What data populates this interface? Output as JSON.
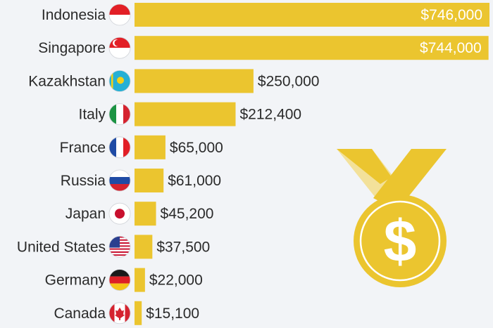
{
  "chart_data": {
    "type": "bar",
    "orientation": "horizontal",
    "categories": [
      "Indonesia",
      "Singapore",
      "Kazakhstan",
      "Italy",
      "France",
      "Russia",
      "Japan",
      "United States",
      "Germany",
      "Canada"
    ],
    "values": [
      746000,
      744000,
      250000,
      212400,
      65000,
      61000,
      45200,
      37500,
      22000,
      15100
    ],
    "value_labels": [
      "$746,000",
      "$744,000",
      "$250,000",
      "$212,400",
      "$65,000",
      "$61,000",
      "$45,200",
      "$37,500",
      "$22,000",
      "$15,100"
    ],
    "flags": [
      "flag-indonesia",
      "flag-singapore",
      "flag-kazakhstan",
      "flag-italy",
      "flag-france",
      "flag-russia",
      "flag-japan",
      "flag-united-states",
      "flag-germany",
      "flag-canada"
    ],
    "xlim": [
      0,
      746000
    ],
    "grid": false,
    "bar_color": "#ebc52f",
    "decoration": "gold-medal-dollar-icon"
  },
  "colors": {
    "background": "#f2f4f7",
    "bar": "#ebc52f",
    "medal_gold": "#ebc52f",
    "medal_ribbon_light": "#f3e19a",
    "text": "#2a2a2a"
  }
}
